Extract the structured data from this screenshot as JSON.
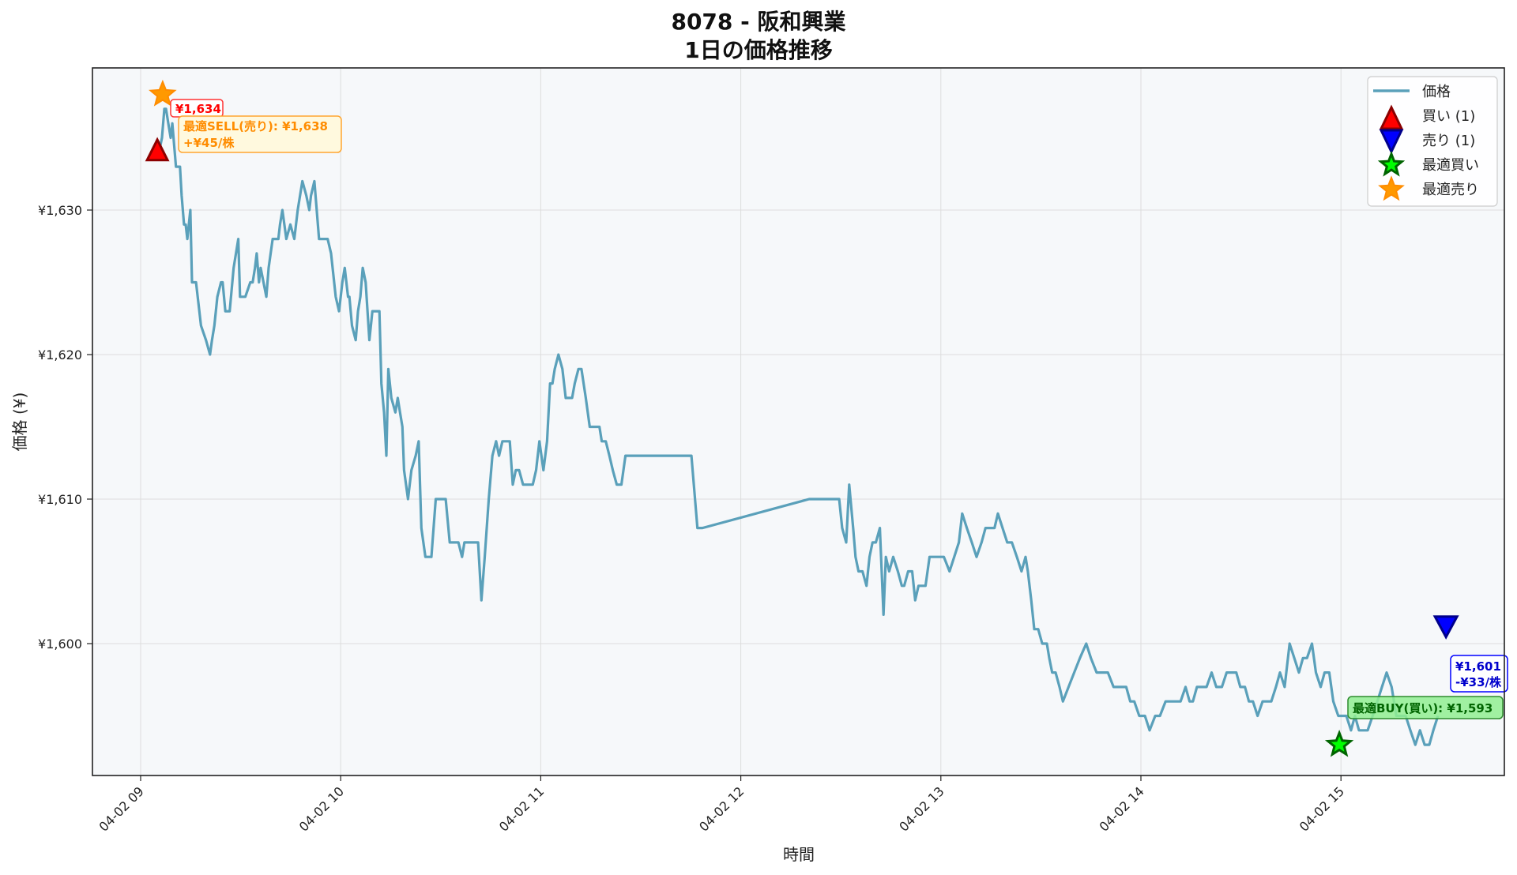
{
  "title": {
    "line1": "8078 - 阪和興業",
    "line2": "1日の価格推移"
  },
  "colors": {
    "price_line": "#5AA0BA",
    "plot_bg": "#F6F8FA",
    "grid": "#DDDDDD",
    "buy_marker": "#FF0000",
    "buy_marker_edge": "#8B0000",
    "sell_marker": "#0000FF",
    "sell_marker_edge": "#00008B",
    "best_buy": "#00FF00",
    "best_buy_edge": "#006400",
    "best_sell": "#FF9900",
    "best_sell_edge": "#FF8C00"
  },
  "chart_data": {
    "type": "line",
    "title": "8078 - 阪和興業 1日の価格推移",
    "xlabel": "時間",
    "ylabel": "価格 (¥)",
    "x_ticks": [
      "04-02 09",
      "04-02 10",
      "04-02 11",
      "04-02 12",
      "04-02 13",
      "04-02 14",
      "04-02 15"
    ],
    "y_ticks": [
      "¥1,600",
      "¥1,610",
      "¥1,620",
      "¥1,630"
    ],
    "y_tick_values": [
      1600,
      1610,
      1620,
      1630
    ],
    "ylim": [
      1591,
      1639.8
    ],
    "xlim_minutes": [
      -14.5,
      411.5
    ],
    "grid": true,
    "legend_position": "upper right",
    "legend": [
      "価格",
      "買い (1)",
      "売り (1)",
      "最適買い",
      "最適売り"
    ],
    "series": [
      {
        "name": "価格",
        "x_minutes_since_0900": [
          4.7,
          5.5,
          6.4,
          7.1,
          7.6,
          8.3,
          9.0,
          9.5,
          10.6,
          11.1,
          11.8,
          12.3,
          13.0,
          13.5,
          14.0,
          14.9,
          15.4,
          16.6,
          18.1,
          19.6,
          20.8,
          21.4,
          22.1,
          23.0,
          24.1,
          24.6,
          25.4,
          26.0,
          26.7,
          27.9,
          29.3,
          29.8,
          30.3,
          31.4,
          32.9,
          33.6,
          34.3,
          34.8,
          35.5,
          36.0,
          37.7,
          38.4,
          39.6,
          40.6,
          41.3,
          41.8,
          42.5,
          43.7,
          44.9,
          46.1,
          47.1,
          48.5,
          49.7,
          50.6,
          51.1,
          52.1,
          53.5,
          55.4,
          56.1,
          57.1,
          58.5,
          59.5,
          60.5,
          61.2,
          62.2,
          62.6,
          63.4,
          64.5,
          65.2,
          65.9,
          66.6,
          67.5,
          68.6,
          69.5,
          70.4,
          70.9,
          71.6,
          72.2,
          73.0,
          73.7,
          74.3,
          75.2,
          76.4,
          77.1,
          77.8,
          78.5,
          79.0,
          80.2,
          81.2,
          82.5,
          83.4,
          84.2,
          85.4,
          86.3,
          87.2,
          88.5,
          89.7,
          90.6,
          91.5,
          92.7,
          93.9,
          95.3,
          96.4,
          97.1,
          98.3,
          99.2,
          100.2,
          101.2,
          102.2,
          103.2,
          104.4,
          105.5,
          106.6,
          107.5,
          108.5,
          109.5,
          110.7,
          111.6,
          112.5,
          113.5,
          114.7,
          115.7,
          116.7,
          117.6,
          118.6,
          119.6,
          120.8,
          121.9,
          122.8,
          123.5,
          124.2,
          125.3,
          126.5,
          127.5,
          128.2,
          129.4,
          130.2,
          131.3,
          132.2,
          133.5,
          134.7,
          135.4,
          136.4,
          137.6,
          138.3,
          139.5,
          140.6,
          141.6,
          142.8,
          144.2,
          145.4,
          146.4,
          147.6,
          148.8,
          149.8,
          150.8,
          151.8,
          152.7,
          153.7,
          154.6,
          155.6,
          156.6,
          157.8,
          159.2,
          160.4,
          161.4,
          162.6,
          163.5,
          165.2,
          167.0,
          168.5,
          200.5,
          209.5,
          210.4,
          211.6,
          212.5,
          213.7,
          214.4,
          215.3,
          216.5,
          217.7,
          218.6,
          219.5,
          220.5,
          221.7,
          222.8,
          223.5,
          224.5,
          225.7,
          227.1,
          228.3,
          229.0,
          230.2,
          231.4,
          232.3,
          233.3,
          234.0,
          235.4,
          236.6,
          237.8,
          239.5,
          240.9,
          242.6,
          244.0,
          245.4,
          246.4,
          247.8,
          249.3,
          250.7,
          252.2,
          253.4,
          254.6,
          256.1,
          257.1,
          258.5,
          259.9,
          261.3,
          262.8,
          264.2,
          265.4,
          266.1,
          267.1,
          268.0,
          269.2,
          270.4,
          271.8,
          272.5,
          273.4,
          274.4,
          275.6,
          276.6,
          278.3,
          280.0,
          281.7,
          283.6,
          285.0,
          286.7,
          288.4,
          290.1,
          291.8,
          293.2,
          294.4,
          295.6,
          296.8,
          298.0,
          299.5,
          301.2,
          302.6,
          304.3,
          305.7,
          307.4,
          308.8,
          310.3,
          311.9,
          313.4,
          314.6,
          315.6,
          316.8,
          318.0,
          319.7,
          321.2,
          322.6,
          324.3,
          325.7,
          327.1,
          328.6,
          329.8,
          331.2,
          332.4,
          333.6,
          335.0,
          336.5,
          337.9,
          339.1,
          340.5,
          341.7,
          343.1,
          344.6,
          346.0,
          347.4,
          348.6,
          349.8,
          351.3,
          352.5,
          353.9,
          355.1,
          356.5,
          357.7,
          359.2,
          360.4,
          361.6,
          363.0,
          364.2,
          365.4,
          366.8,
          368.0,
          369.5,
          370.9,
          372.3,
          373.7,
          375.2,
          376.6,
          378.0,
          379.4,
          380.8,
          382.3,
          383.7,
          385.1,
          386.5,
          387.7,
          389.1
        ],
        "values": [
          1634,
          1634,
          1635,
          1637,
          1637,
          1636,
          1635,
          1636,
          1633,
          1633,
          1633,
          1631,
          1629,
          1629,
          1628,
          1630,
          1625,
          1625,
          1622,
          1621,
          1620,
          1621,
          1622,
          1624,
          1625,
          1625,
          1623,
          1623,
          1623,
          1626,
          1628,
          1624,
          1624,
          1624,
          1625,
          1625,
          1626,
          1627,
          1625,
          1626,
          1624,
          1626,
          1628,
          1628,
          1628,
          1629,
          1630,
          1628,
          1629,
          1628,
          1630,
          1632,
          1631,
          1630,
          1631,
          1632,
          1628,
          1628,
          1628,
          1627,
          1624,
          1623,
          1625,
          1626,
          1624,
          1624,
          1622,
          1621,
          1623,
          1624,
          1626,
          1625,
          1621,
          1623,
          1623,
          1623,
          1623,
          1618,
          1616,
          1613,
          1619,
          1617,
          1616,
          1617,
          1616,
          1615,
          1612,
          1610,
          1612,
          1613,
          1614,
          1608,
          1606,
          1606,
          1606,
          1610,
          1610,
          1610,
          1610,
          1607,
          1607,
          1607,
          1606,
          1607,
          1607,
          1607,
          1607,
          1607,
          1603,
          1606,
          1610,
          1613,
          1614,
          1613,
          1614,
          1614,
          1614,
          1611,
          1612,
          1612,
          1611,
          1611,
          1611,
          1611,
          1612,
          1614,
          1612,
          1614,
          1618,
          1618,
          1619,
          1620,
          1619,
          1617,
          1617,
          1617,
          1618,
          1619,
          1619,
          1617,
          1615,
          1615,
          1615,
          1615,
          1614,
          1614,
          1613,
          1612,
          1611,
          1611,
          1613,
          1613,
          1613,
          1613,
          1613,
          1613,
          1613,
          1613,
          1613,
          1613,
          1613,
          1613,
          1613,
          1613,
          1613,
          1613,
          1613,
          1613,
          1613,
          1608,
          1608,
          1610,
          1610,
          1608,
          1607,
          1611,
          1608,
          1606,
          1605,
          1605,
          1604,
          1606,
          1607,
          1607,
          1608,
          1602,
          1606,
          1605,
          1606,
          1605,
          1604,
          1604,
          1605,
          1605,
          1603,
          1604,
          1604,
          1604,
          1606,
          1606,
          1606,
          1606,
          1605,
          1606,
          1607,
          1609,
          1608,
          1607,
          1606,
          1607,
          1608,
          1608,
          1608,
          1609,
          1608,
          1607,
          1607,
          1606,
          1605,
          1606,
          1605,
          1603,
          1601,
          1601,
          1600,
          1600,
          1599,
          1598,
          1598,
          1597,
          1596,
          1597,
          1598,
          1599,
          1600,
          1599,
          1598,
          1598,
          1598,
          1597,
          1597,
          1597,
          1597,
          1596,
          1596,
          1595,
          1595,
          1594,
          1595,
          1595,
          1596,
          1596,
          1596,
          1596,
          1597,
          1596,
          1596,
          1597,
          1597,
          1597,
          1598,
          1597,
          1597,
          1598,
          1598,
          1598,
          1597,
          1597,
          1596,
          1596,
          1595,
          1596,
          1596,
          1596,
          1597,
          1598,
          1597,
          1600,
          1599,
          1598,
          1599,
          1599,
          1600,
          1598,
          1597,
          1598,
          1598,
          1596,
          1595,
          1595,
          1595,
          1594,
          1595,
          1594,
          1594,
          1594,
          1595,
          1596,
          1597,
          1598,
          1597,
          1595,
          1595,
          1595,
          1594,
          1593,
          1594,
          1593,
          1593,
          1594,
          1595,
          1597,
          1597,
          1597,
          1596,
          1595,
          1595,
          1595,
          1595,
          1596,
          1597,
          1597,
          1597,
          1598,
          1596,
          1596
        ]
      }
    ],
    "markers": [
      {
        "name": "買い (1)",
        "type": "buy",
        "shape": "triangle-up",
        "x_minutes": 5.0,
        "price": 1634,
        "label": "¥1,634"
      },
      {
        "name": "売り (1)",
        "type": "sell",
        "shape": "triangle-down",
        "x_minutes": 391.5,
        "price": 1601,
        "label": "¥1,601\n-¥33/株"
      },
      {
        "name": "最適買い",
        "type": "best_buy",
        "shape": "star",
        "x_minutes": 359.5,
        "price": 1593,
        "label": "最適BUY(買い): ¥1,593"
      },
      {
        "name": "最適売り",
        "type": "best_sell",
        "shape": "star",
        "x_minutes": 6.6,
        "price": 1638,
        "label": "最適SELL(売り): ¥1,638\n+¥45/株"
      }
    ]
  },
  "annotations": {
    "buy_price": "¥1,634",
    "best_sell_line1": "最適SELL(売り): ¥1,638",
    "best_sell_line2": "+¥45/株",
    "sell_line1": "¥1,601",
    "sell_line2": "-¥33/株",
    "best_buy": "最適BUY(買い): ¥1,593"
  },
  "legend_items": [
    {
      "label": "価格",
      "symbol": "line"
    },
    {
      "label": "買い (1)",
      "symbol": "triangle-up"
    },
    {
      "label": "売り (1)",
      "symbol": "triangle-down"
    },
    {
      "label": "最適買い",
      "symbol": "star-green"
    },
    {
      "label": "最適売り",
      "symbol": "star-orange"
    }
  ],
  "axes": {
    "xlabel": "時間",
    "ylabel": "価格 (¥)"
  }
}
